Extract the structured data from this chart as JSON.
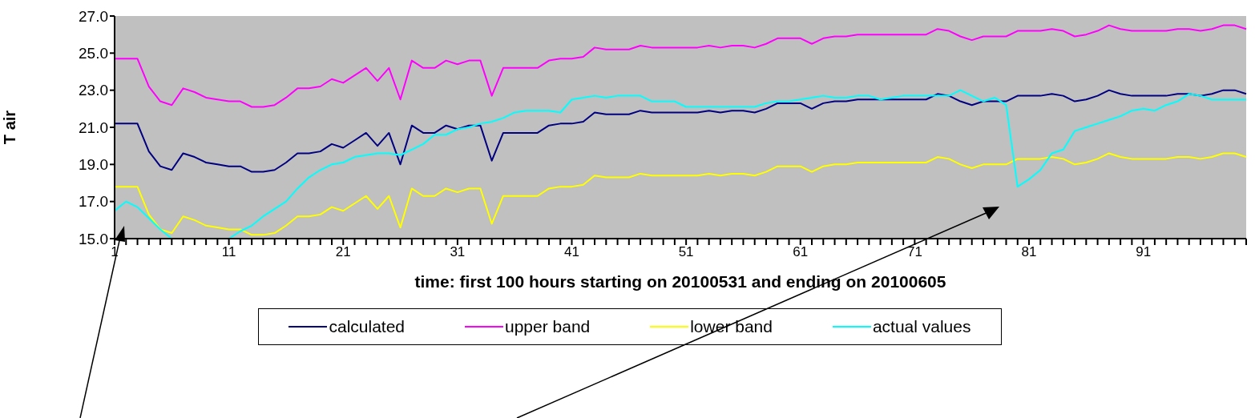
{
  "chart_data": {
    "type": "line",
    "xlabel": "time: first 100 hours starting on 20100531 and ending on 20100605",
    "ylabel": "T air",
    "categories": [
      "1",
      null,
      null,
      null,
      null,
      null,
      null,
      null,
      null,
      null,
      "11",
      null,
      null,
      null,
      null,
      null,
      null,
      null,
      null,
      null,
      "21",
      null,
      null,
      null,
      null,
      null,
      null,
      null,
      null,
      null,
      "31",
      null,
      null,
      null,
      null,
      null,
      null,
      null,
      null,
      null,
      "41",
      null,
      null,
      null,
      null,
      null,
      null,
      null,
      null,
      null,
      "51",
      null,
      null,
      null,
      null,
      null,
      null,
      null,
      null,
      null,
      "61",
      null,
      null,
      null,
      null,
      null,
      null,
      null,
      null,
      null,
      "71",
      null,
      null,
      null,
      null,
      null,
      null,
      null,
      null,
      null,
      "81",
      null,
      null,
      null,
      null,
      null,
      null,
      null,
      null,
      null,
      "91",
      null,
      null,
      null,
      null,
      null,
      null,
      null,
      null,
      null
    ],
    "ylim": [
      15,
      27
    ],
    "yticks": [
      {
        "value": 15,
        "label": "15.0"
      },
      {
        "value": 17,
        "label": "17.0"
      },
      {
        "value": 19,
        "label": "19.0"
      },
      {
        "value": 21,
        "label": "21.0"
      },
      {
        "value": 23,
        "label": "23.0"
      },
      {
        "value": 25,
        "label": "25.0"
      },
      {
        "value": 27,
        "label": "27.0"
      }
    ],
    "grid": false,
    "legend": "bottom",
    "marker": "none",
    "line_style": "solid",
    "series": [
      {
        "name": "calculated",
        "color": "#000080",
        "values": [
          21.2,
          21.2,
          21.2,
          19.7,
          18.9,
          18.7,
          19.6,
          19.4,
          19.1,
          19.0,
          18.9,
          18.9,
          18.6,
          18.6,
          18.7,
          19.1,
          19.6,
          19.6,
          19.7,
          20.1,
          19.9,
          20.3,
          20.7,
          20.0,
          20.7,
          19.0,
          21.1,
          20.7,
          20.7,
          21.1,
          20.9,
          21.1,
          21.1,
          19.2,
          20.7,
          20.7,
          20.7,
          20.7,
          21.1,
          21.2,
          21.2,
          21.3,
          21.8,
          21.7,
          21.7,
          21.7,
          21.9,
          21.8,
          21.8,
          21.8,
          21.8,
          21.8,
          21.9,
          21.8,
          21.9,
          21.9,
          21.8,
          22.0,
          22.3,
          22.3,
          22.3,
          22.0,
          22.3,
          22.4,
          22.4,
          22.5,
          22.5,
          22.5,
          22.5,
          22.5,
          22.5,
          22.5,
          22.8,
          22.7,
          22.4,
          22.2,
          22.4,
          22.4,
          22.4,
          22.7,
          22.7,
          22.7,
          22.8,
          22.7,
          22.4,
          22.5,
          22.7,
          23.0,
          22.8,
          22.7,
          22.7,
          22.7,
          22.7,
          22.8,
          22.8,
          22.7,
          22.8,
          23.0,
          23.0,
          22.8
        ]
      },
      {
        "name": "upper band",
        "color": "#ff00ff",
        "values": [
          24.7,
          24.7,
          24.7,
          23.2,
          22.4,
          22.2,
          23.1,
          22.9,
          22.6,
          22.5,
          22.4,
          22.4,
          22.1,
          22.1,
          22.2,
          22.6,
          23.1,
          23.1,
          23.2,
          23.6,
          23.4,
          23.8,
          24.2,
          23.5,
          24.2,
          22.5,
          24.6,
          24.2,
          24.2,
          24.6,
          24.4,
          24.6,
          24.6,
          22.7,
          24.2,
          24.2,
          24.2,
          24.2,
          24.6,
          24.7,
          24.7,
          24.8,
          25.3,
          25.2,
          25.2,
          25.2,
          25.4,
          25.3,
          25.3,
          25.3,
          25.3,
          25.3,
          25.4,
          25.3,
          25.4,
          25.4,
          25.3,
          25.5,
          25.8,
          25.8,
          25.8,
          25.5,
          25.8,
          25.9,
          25.9,
          26.0,
          26.0,
          26.0,
          26.0,
          26.0,
          26.0,
          26.0,
          26.3,
          26.2,
          25.9,
          25.7,
          25.9,
          25.9,
          25.9,
          26.2,
          26.2,
          26.2,
          26.3,
          26.2,
          25.9,
          26.0,
          26.2,
          26.5,
          26.3,
          26.2,
          26.2,
          26.2,
          26.2,
          26.3,
          26.3,
          26.2,
          26.3,
          26.5,
          26.5,
          26.3
        ]
      },
      {
        "name": "lower band",
        "color": "#ffff00",
        "values": [
          17.8,
          17.8,
          17.8,
          16.3,
          15.5,
          15.3,
          16.2,
          16.0,
          15.7,
          15.6,
          15.5,
          15.5,
          15.2,
          15.2,
          15.3,
          15.7,
          16.2,
          16.2,
          16.3,
          16.7,
          16.5,
          16.9,
          17.3,
          16.6,
          17.3,
          15.6,
          17.7,
          17.3,
          17.3,
          17.7,
          17.5,
          17.7,
          17.7,
          15.8,
          17.3,
          17.3,
          17.3,
          17.3,
          17.7,
          17.8,
          17.8,
          17.9,
          18.4,
          18.3,
          18.3,
          18.3,
          18.5,
          18.4,
          18.4,
          18.4,
          18.4,
          18.4,
          18.5,
          18.4,
          18.5,
          18.5,
          18.4,
          18.6,
          18.9,
          18.9,
          18.9,
          18.6,
          18.9,
          19.0,
          19.0,
          19.1,
          19.1,
          19.1,
          19.1,
          19.1,
          19.1,
          19.1,
          19.4,
          19.3,
          19.0,
          18.8,
          19.0,
          19.0,
          19.0,
          19.3,
          19.3,
          19.3,
          19.4,
          19.3,
          19.0,
          19.1,
          19.3,
          19.6,
          19.4,
          19.3,
          19.3,
          19.3,
          19.3,
          19.4,
          19.4,
          19.3,
          19.4,
          19.6,
          19.6,
          19.4
        ]
      },
      {
        "name": "actual values",
        "color": "#00ffff",
        "values": [
          16.5,
          17.0,
          16.7,
          16.1,
          15.5,
          15.0,
          null,
          null,
          null,
          null,
          15.0,
          15.4,
          15.7,
          16.2,
          16.6,
          17.0,
          17.7,
          18.3,
          18.7,
          19.0,
          19.1,
          19.4,
          19.5,
          19.6,
          19.6,
          19.5,
          19.8,
          20.1,
          20.6,
          20.6,
          20.9,
          21.0,
          21.2,
          21.3,
          21.5,
          21.8,
          21.9,
          21.9,
          21.9,
          21.8,
          22.5,
          22.6,
          22.7,
          22.6,
          22.7,
          22.7,
          22.7,
          22.4,
          22.4,
          22.4,
          22.1,
          22.1,
          22.1,
          22.1,
          22.1,
          22.1,
          22.1,
          22.3,
          22.4,
          22.4,
          22.5,
          22.6,
          22.7,
          22.6,
          22.6,
          22.7,
          22.7,
          22.5,
          22.6,
          22.7,
          22.7,
          22.7,
          22.7,
          22.7,
          23.0,
          22.7,
          22.4,
          22.6,
          22.2,
          17.8,
          18.2,
          18.7,
          19.6,
          19.8,
          20.8,
          21.0,
          21.2,
          21.4,
          21.6,
          21.9,
          22.0,
          21.9,
          22.2,
          22.4,
          22.8,
          22.7,
          22.5,
          22.5,
          22.5,
          22.5
        ]
      }
    ]
  }
}
